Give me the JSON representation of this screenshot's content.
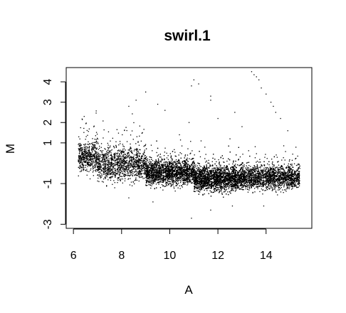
{
  "chart_data": {
    "type": "scatter",
    "title": "swirl.1",
    "xlabel": "A",
    "ylabel": "M",
    "xlim": [
      5.7,
      15.9
    ],
    "ylim": [
      -3.2,
      4.7
    ],
    "x_ticks": [
      6,
      8,
      10,
      12,
      14
    ],
    "y_ticks": [
      -3,
      -1,
      1,
      2,
      3,
      4
    ],
    "x_tick_labels": [
      "6",
      "8",
      "10",
      "12",
      "14"
    ],
    "y_tick_labels": [
      "-3",
      "-1",
      "1",
      "2",
      "3",
      "4"
    ],
    "grid": false,
    "legend": "none",
    "point_color": "#000000",
    "n_points_approx": 8400,
    "density_profile": [
      {
        "a": [
          6.2,
          7.0
        ],
        "m_center": 0.3,
        "m_spread": 0.35,
        "weight": 0.06
      },
      {
        "a": [
          7.0,
          9.0
        ],
        "m_center": -0.05,
        "m_spread": 0.4,
        "weight": 0.14
      },
      {
        "a": [
          9.0,
          11.0
        ],
        "m_center": -0.45,
        "m_spread": 0.3,
        "weight": 0.24
      },
      {
        "a": [
          11.0,
          13.0
        ],
        "m_center": -0.75,
        "m_spread": 0.3,
        "weight": 0.34
      },
      {
        "a": [
          13.0,
          15.4
        ],
        "m_center": -0.7,
        "m_spread": 0.28,
        "weight": 0.22
      }
    ],
    "outliers": [
      {
        "a": 8.3,
        "m": 2.8
      },
      {
        "a": 8.6,
        "m": 3.1
      },
      {
        "a": 9.0,
        "m": 3.5
      },
      {
        "a": 9.5,
        "m": 2.9
      },
      {
        "a": 9.8,
        "m": 2.6
      },
      {
        "a": 11.0,
        "m": 4.1
      },
      {
        "a": 11.2,
        "m": 3.9
      },
      {
        "a": 10.9,
        "m": 3.8
      },
      {
        "a": 11.7,
        "m": 3.3
      },
      {
        "a": 11.7,
        "m": 3.1
      },
      {
        "a": 12.0,
        "m": 2.2
      },
      {
        "a": 12.7,
        "m": 2.5
      },
      {
        "a": 13.4,
        "m": 4.5
      },
      {
        "a": 13.5,
        "m": 4.35
      },
      {
        "a": 13.6,
        "m": 4.25
      },
      {
        "a": 13.7,
        "m": 4.1
      },
      {
        "a": 13.8,
        "m": 3.7
      },
      {
        "a": 14.0,
        "m": 3.4
      },
      {
        "a": 14.2,
        "m": 3.0
      },
      {
        "a": 14.3,
        "m": 2.8
      },
      {
        "a": 14.4,
        "m": 2.5
      },
      {
        "a": 14.6,
        "m": 2.2
      },
      {
        "a": 14.9,
        "m": 1.6
      },
      {
        "a": 10.8,
        "m": 2.0
      },
      {
        "a": 10.4,
        "m": 1.4
      },
      {
        "a": 11.3,
        "m": 1.1
      },
      {
        "a": 12.5,
        "m": 1.2
      },
      {
        "a": 13.0,
        "m": 1.8
      },
      {
        "a": 10.9,
        "m": -2.7
      },
      {
        "a": 9.3,
        "m": -1.9
      },
      {
        "a": 8.3,
        "m": -1.7
      },
      {
        "a": 11.7,
        "m": -2.3
      },
      {
        "a": 12.6,
        "m": -2.1
      },
      {
        "a": 13.9,
        "m": -2.1
      }
    ]
  }
}
